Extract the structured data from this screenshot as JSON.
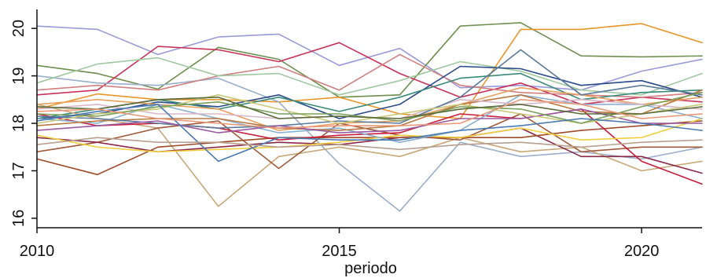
{
  "chart_data": {
    "type": "line",
    "title": "",
    "xlabel": "periodo",
    "ylabel": "",
    "xlim": [
      2010,
      2021
    ],
    "ylim": [
      15.8,
      20.4
    ],
    "x": [
      2010,
      2011,
      2012,
      2013,
      2014,
      2015,
      2016,
      2017,
      2018,
      2019,
      2020,
      2021
    ],
    "x_ticks": [
      2010,
      2015,
      2020
    ],
    "x_tick_labels": [
      "2010",
      "2015",
      "2020"
    ],
    "y_ticks": [
      16,
      17,
      18,
      19,
      20
    ],
    "y_tick_labels": [
      "16",
      "17",
      "18",
      "19",
      "20"
    ],
    "grid": false,
    "legend": "none",
    "series": [
      {
        "color": "#9a9ad8",
        "values": [
          20.05,
          19.98,
          19.45,
          19.82,
          19.88,
          19.22,
          19.58,
          18.75,
          18.8,
          18.7,
          19.1,
          19.35
        ]
      },
      {
        "color": "#6e8f4e",
        "values": [
          19.22,
          19.05,
          18.72,
          19.6,
          19.35,
          18.55,
          18.6,
          20.05,
          20.12,
          19.42,
          19.4,
          19.42
        ]
      },
      {
        "color": "#e8952a",
        "values": [
          18.3,
          18.62,
          18.5,
          18.5,
          18.45,
          18.55,
          18.2,
          18.1,
          19.98,
          19.98,
          20.1,
          19.7
        ]
      },
      {
        "color": "#c8325a",
        "values": [
          18.6,
          18.7,
          19.62,
          19.55,
          19.3,
          19.7,
          19.05,
          18.55,
          18.85,
          18.4,
          18.55,
          18.45
        ]
      },
      {
        "color": "#9aafcc",
        "values": [
          19.0,
          18.85,
          18.8,
          18.95,
          18.45,
          17.15,
          16.15,
          17.6,
          17.3,
          17.4,
          17.25,
          17.5
        ]
      },
      {
        "color": "#d08080",
        "values": [
          18.7,
          18.8,
          18.7,
          19.0,
          19.2,
          18.7,
          19.45,
          18.8,
          18.65,
          18.6,
          18.55,
          18.65
        ]
      },
      {
        "color": "#a0c8a0",
        "values": [
          18.85,
          19.25,
          19.38,
          19.0,
          19.05,
          18.6,
          18.9,
          19.3,
          19.1,
          18.7,
          18.6,
          19.05
        ]
      },
      {
        "color": "#2a4a8a",
        "values": [
          18.1,
          18.2,
          18.45,
          18.35,
          18.6,
          18.1,
          18.4,
          19.2,
          19.15,
          18.8,
          18.9,
          18.55
        ]
      },
      {
        "color": "#3a8a7a",
        "values": [
          18.1,
          18.3,
          18.5,
          18.3,
          18.55,
          18.25,
          18.55,
          18.95,
          19.05,
          18.5,
          18.65,
          18.7
        ]
      },
      {
        "color": "#c8a878",
        "values": [
          18.4,
          18.1,
          17.9,
          16.25,
          17.3,
          17.5,
          17.3,
          17.7,
          17.4,
          17.5,
          17.0,
          17.2
        ]
      },
      {
        "color": "#a05a3a",
        "values": [
          17.4,
          17.6,
          17.9,
          18.05,
          17.05,
          18.0,
          17.75,
          17.65,
          18.2,
          17.4,
          17.5,
          17.5
        ]
      },
      {
        "color": "#8a2a4a",
        "values": [
          17.7,
          17.6,
          17.4,
          17.5,
          17.6,
          17.55,
          17.7,
          17.7,
          17.9,
          17.3,
          17.3,
          16.95
        ]
      },
      {
        "color": "#a04a2a",
        "values": [
          17.25,
          16.92,
          17.5,
          17.6,
          17.7,
          17.7,
          17.7,
          17.7,
          17.7,
          17.85,
          17.95,
          18.05
        ]
      },
      {
        "color": "#c81e3c",
        "values": [
          18.2,
          17.95,
          18.0,
          17.9,
          17.65,
          17.75,
          17.8,
          18.2,
          18.1,
          18.3,
          17.2,
          16.72
        ]
      },
      {
        "color": "#f0d040",
        "values": [
          17.75,
          17.5,
          17.4,
          17.45,
          17.5,
          17.6,
          17.75,
          17.7,
          17.9,
          17.65,
          17.7,
          18.1
        ]
      },
      {
        "color": "#e8a060",
        "values": [
          18.4,
          18.5,
          18.4,
          18.3,
          17.85,
          18.0,
          18.05,
          18.4,
          18.75,
          18.6,
          18.4,
          18.55
        ]
      },
      {
        "color": "#8ab0d0",
        "values": [
          18.1,
          18.0,
          18.4,
          18.1,
          17.8,
          17.9,
          17.6,
          17.85,
          18.6,
          18.4,
          18.4,
          18.1
        ]
      },
      {
        "color": "#b87840",
        "values": [
          17.95,
          18.05,
          18.1,
          18.1,
          17.9,
          17.85,
          17.95,
          18.4,
          18.6,
          18.25,
          18.2,
          18.7
        ]
      },
      {
        "color": "#d8b8c8",
        "values": [
          18.3,
          18.4,
          18.2,
          18.2,
          18.1,
          18.15,
          18.1,
          18.5,
          18.4,
          18.5,
          18.4,
          18.3
        ]
      },
      {
        "color": "#5a7a9a",
        "values": [
          18.15,
          18.1,
          18.0,
          17.9,
          17.95,
          18.05,
          18.0,
          18.55,
          19.55,
          18.6,
          18.8,
          18.6
        ]
      },
      {
        "color": "#9a5aa0",
        "values": [
          17.85,
          17.95,
          18.05,
          17.8,
          17.95,
          17.8,
          17.85,
          18.1,
          18.1,
          18.3,
          18.0,
          18.0
        ]
      },
      {
        "color": "#c8c878",
        "values": [
          18.0,
          18.2,
          18.3,
          18.6,
          18.3,
          18.0,
          18.2,
          18.4,
          18.2,
          18.0,
          18.2,
          18.4
        ]
      },
      {
        "color": "#7aa05a",
        "values": [
          18.2,
          18.15,
          18.35,
          18.45,
          18.2,
          18.2,
          18.05,
          18.35,
          18.3,
          18.0,
          18.35,
          18.65
        ]
      },
      {
        "color": "#5a6a3a",
        "values": [
          18.35,
          18.3,
          18.5,
          18.55,
          18.1,
          18.15,
          18.1,
          18.3,
          18.4,
          18.2,
          18.2,
          18.35
        ]
      },
      {
        "color": "#4a7ab0",
        "values": [
          18.05,
          18.25,
          18.4,
          17.2,
          17.7,
          17.65,
          17.65,
          17.85,
          17.95,
          18.1,
          18.0,
          17.85
        ]
      },
      {
        "color": "#e89878",
        "values": [
          18.25,
          18.3,
          18.1,
          18.0,
          17.9,
          17.95,
          17.95,
          18.0,
          18.5,
          18.4,
          18.1,
          18.2
        ]
      },
      {
        "color": "#b8a090",
        "values": [
          17.55,
          17.7,
          17.6,
          17.6,
          17.5,
          17.55,
          17.45,
          17.55,
          17.6,
          17.5,
          17.6,
          17.65
        ]
      }
    ]
  }
}
